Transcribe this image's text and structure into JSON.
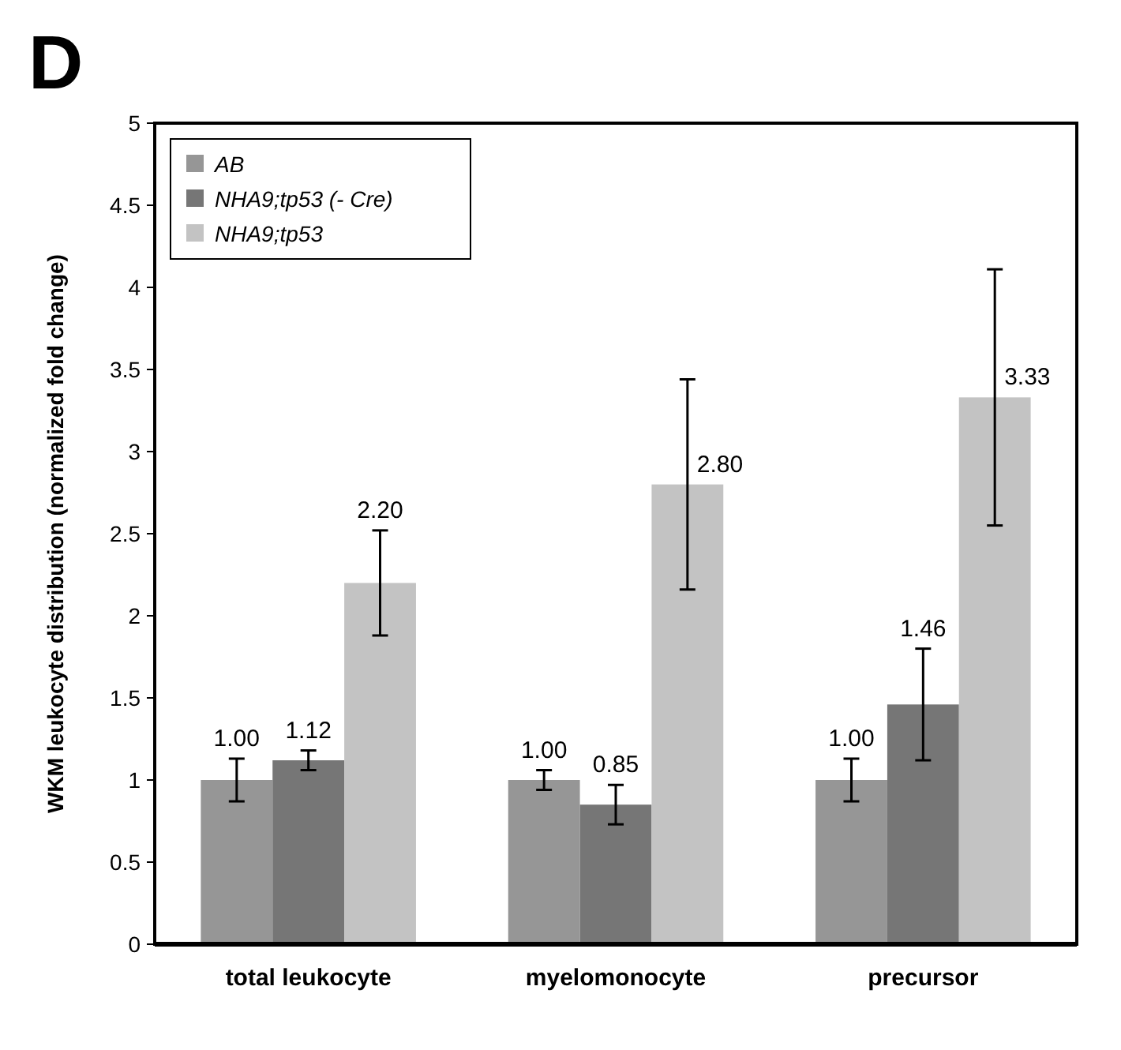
{
  "chart_data": {
    "type": "bar",
    "title": "D",
    "ylabel": "WKM leukocyte distribution (normalized fold change)",
    "categories": [
      "total leukocyte",
      "myelomonocyte",
      "precursor"
    ],
    "series": [
      {
        "name": "AB",
        "color": "#969696",
        "values": [
          1.0,
          1.0,
          1.0
        ],
        "value_labels": [
          "1.00",
          "1.00",
          "1.00"
        ],
        "errors": [
          0.13,
          0.06,
          0.13
        ]
      },
      {
        "name": "NHA9;tp53 (- Cre)",
        "color": "#767676",
        "values": [
          1.12,
          0.85,
          1.46
        ],
        "value_labels": [
          "1.12",
          "0.85",
          "1.46"
        ],
        "errors": [
          0.06,
          0.12,
          0.34
        ]
      },
      {
        "name": "NHA9;tp53",
        "color": "#c3c3c3",
        "values": [
          2.2,
          2.8,
          3.33
        ],
        "value_labels": [
          "2.20",
          "2.80",
          "3.33"
        ],
        "errors": [
          0.32,
          0.64,
          0.78
        ]
      }
    ],
    "ylim": [
      0,
      5
    ],
    "yticks": [
      0,
      0.5,
      1,
      1.5,
      2,
      2.5,
      3,
      3.5,
      4,
      4.5,
      5
    ],
    "legend": "top left"
  }
}
